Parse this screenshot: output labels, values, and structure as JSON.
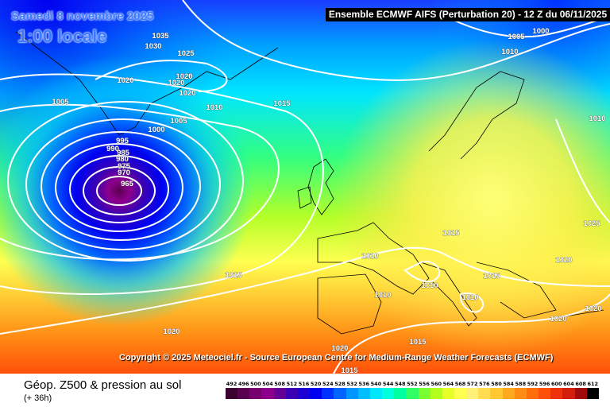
{
  "header": {
    "date": "Samedi 8 novembre 2025",
    "time": "1:00 locale",
    "model": "Ensemble ECMWF AIFS  (Perturbation 20)  -  12 Z du 06/11/2025"
  },
  "copyright": "Copyright © 2025 Meteociel.fr - Source European Centre for Medium-Range Weather Forecasts (ECMWF)",
  "footer": {
    "title": "Géop. Z500 & pression au sol",
    "subtitle": "(+ 36h)"
  },
  "scale": {
    "values": [
      "492",
      "496",
      "500",
      "504",
      "508",
      "512",
      "516",
      "520",
      "524",
      "528",
      "532",
      "536",
      "540",
      "544",
      "548",
      "552",
      "556",
      "560",
      "564",
      "568",
      "572",
      "576",
      "580",
      "584",
      "588",
      "592",
      "596",
      "600",
      "604",
      "608",
      "612"
    ],
    "colors": [
      "#3a0030",
      "#5a0050",
      "#78006e",
      "#8c008c",
      "#640096",
      "#3c00b4",
      "#1e00d2",
      "#0000f0",
      "#0032ff",
      "#0064ff",
      "#0096ff",
      "#00beff",
      "#00e6ff",
      "#00ffdc",
      "#00ffa0",
      "#32ff64",
      "#78ff32",
      "#b4ff1e",
      "#e6ff28",
      "#ffff50",
      "#fff078",
      "#ffdc50",
      "#ffc832",
      "#ffaa1e",
      "#ff8c14",
      "#ff6e0a",
      "#ff500a",
      "#f0320a",
      "#d21e0a",
      "#a00a0a",
      "#000000"
    ]
  },
  "isobars": [
    {
      "label": "1035",
      "pos": "top-left"
    },
    {
      "label": "1030",
      "pos": "top-left"
    },
    {
      "label": "1025",
      "pos": "top-left"
    },
    {
      "label": "1020",
      "pos": "left"
    },
    {
      "label": "1025",
      "pos": "greenland"
    },
    {
      "label": "1020",
      "pos": "greenland"
    },
    {
      "label": "1020",
      "pos": "greenland-b"
    },
    {
      "label": "1020",
      "pos": "greenland-c"
    },
    {
      "label": "1005",
      "pos": "left"
    },
    {
      "label": "1010",
      "pos": "mid"
    },
    {
      "label": "1015",
      "pos": "mid"
    },
    {
      "label": "1005",
      "pos": "mid-b"
    },
    {
      "label": "1000",
      "pos": "low-ring"
    },
    {
      "label": "995",
      "pos": "low-ring"
    },
    {
      "label": "990",
      "pos": "low-ring"
    },
    {
      "label": "985",
      "pos": "low-ring"
    },
    {
      "label": "980",
      "pos": "low-ring"
    },
    {
      "label": "975",
      "pos": "low-ring"
    },
    {
      "label": "970",
      "pos": "low-ring"
    },
    {
      "label": "965",
      "pos": "low-center"
    },
    {
      "label": "1015",
      "pos": "atlantic"
    },
    {
      "label": "1020",
      "pos": "atlantic-south"
    },
    {
      "label": "1020",
      "pos": "iberia"
    },
    {
      "label": "1015",
      "pos": "iberia-b"
    },
    {
      "label": "1015",
      "pos": "med"
    },
    {
      "label": "1010",
      "pos": "france"
    },
    {
      "label": "1010",
      "pos": "italy"
    },
    {
      "label": "1010",
      "pos": "italy-b"
    },
    {
      "label": "1010",
      "pos": "balkan"
    },
    {
      "label": "1015",
      "pos": "europe"
    },
    {
      "label": "1015",
      "pos": "balkan-b"
    },
    {
      "label": "1020",
      "pos": "east"
    },
    {
      "label": "1020",
      "pos": "turkey"
    },
    {
      "label": "1020",
      "pos": "east-b"
    },
    {
      "label": "1025",
      "pos": "russia"
    },
    {
      "label": "1010",
      "pos": "north-east"
    },
    {
      "label": "1005",
      "pos": "top-right"
    },
    {
      "label": "1000",
      "pos": "top-right"
    },
    {
      "label": "1010",
      "pos": "scandinavia"
    }
  ]
}
